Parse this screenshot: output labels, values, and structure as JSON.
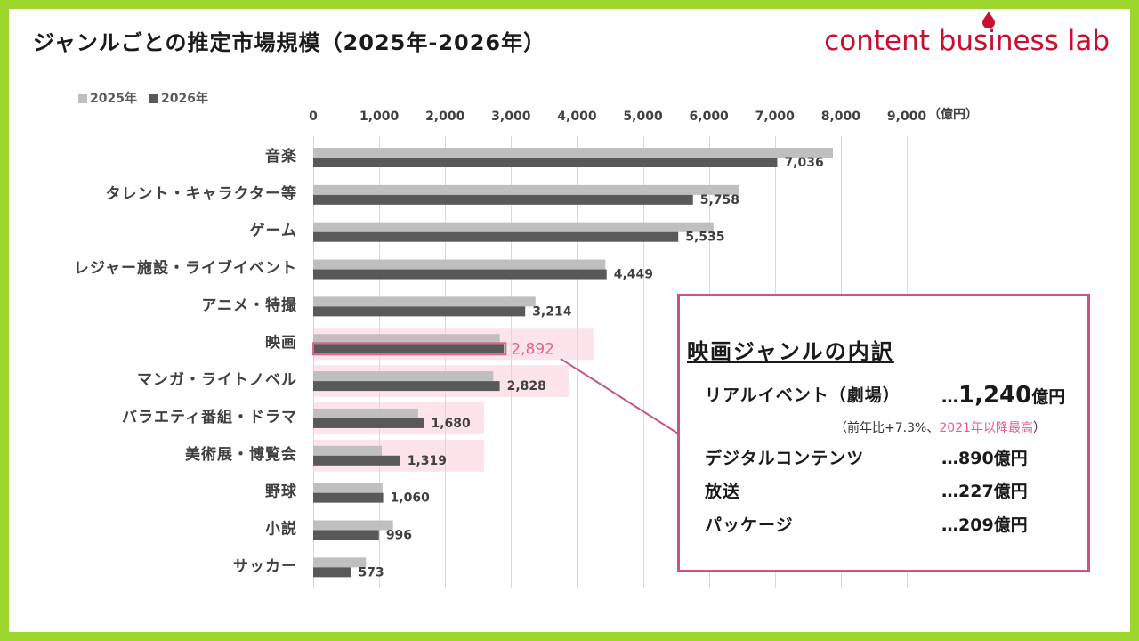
{
  "colors": {
    "frame": "#9cd62c",
    "title_text": "#1a1a1a",
    "logo": "#c8102e",
    "gridline": "#d9d9d9",
    "axis_text": "#404040",
    "legend_text": "#595959",
    "highlight_bg": "#fce4ea",
    "accent_pink": "#e0628a",
    "box_border": "#c9557d"
  },
  "logo": {
    "text": "content business lab",
    "icon": "drop-icon"
  },
  "chart_data": {
    "type": "bar",
    "orientation": "horizontal",
    "title": "ジャンルごとの推定市場規模（2025年-2026年）",
    "categories": [
      "音楽",
      "タレント・キャラクター等",
      "ゲーム",
      "レジャー施設・ライブイベント",
      "アニメ・特撮",
      "映画",
      "マンガ・ライトノベル",
      "バラエティ番組・ドラマ",
      "美術展・博覧会",
      "野球",
      "小説",
      "サッカー"
    ],
    "series": [
      {
        "name": "2025年",
        "color": "#bfbfbf",
        "values": [
          7880,
          6460,
          6070,
          4430,
          3370,
          2830,
          2730,
          1590,
          1040,
          1050,
          1210,
          800
        ]
      },
      {
        "name": "2026年",
        "color": "#595959",
        "values": [
          7036,
          5758,
          5535,
          4449,
          3214,
          2892,
          2828,
          1680,
          1319,
          1060,
          996,
          573
        ],
        "labels": [
          "7,036",
          "5,758",
          "5,535",
          "4,449",
          "3,214",
          "2,892",
          "2,828",
          "1,680",
          "1,319",
          "1,060",
          "996",
          "573"
        ]
      }
    ],
    "xlim": [
      0,
      9000
    ],
    "ticks": [
      0,
      1000,
      2000,
      3000,
      4000,
      5000,
      6000,
      7000,
      8000,
      9000
    ],
    "tick_labels": [
      "0",
      "1,000",
      "2,000",
      "3,000",
      "4,000",
      "5,000",
      "6,000",
      "7,000",
      "8,000",
      "9,000"
    ],
    "unit_label": "（億円）",
    "axis_position": "top",
    "grid": true,
    "legend": "top-left",
    "highlighted": [
      false,
      false,
      false,
      false,
      false,
      true,
      true,
      true,
      true,
      false,
      false,
      false
    ],
    "emphasized": [
      false,
      false,
      false,
      false,
      false,
      true,
      false,
      false,
      false,
      false,
      false,
      false
    ]
  },
  "callout": {
    "title": "映画ジャンルの内訳",
    "items": [
      {
        "label": "リアルイベント（劇場）",
        "prefix": "…",
        "amount": "1,240",
        "unit": "億円",
        "note": {
          "pre": "（前年比+7.3%、",
          "highlight": "2021年以降最高",
          "post": "）"
        }
      },
      {
        "label": "デジタルコンテンツ",
        "prefix": "…",
        "amount": "890",
        "unit": "億円"
      },
      {
        "label": "放送",
        "prefix": "…",
        "amount": "227",
        "unit": "億円"
      },
      {
        "label": "パッケージ",
        "prefix": "…",
        "amount": "209",
        "unit": "億円"
      }
    ]
  }
}
